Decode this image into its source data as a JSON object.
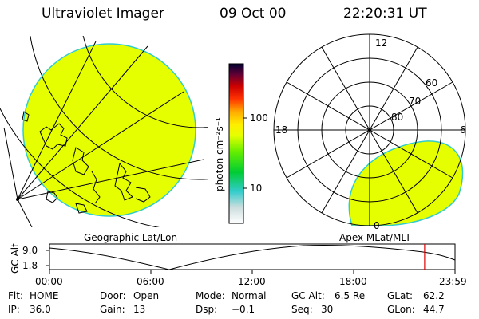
{
  "header": {
    "instrument": "Ultraviolet Imager",
    "date": "09 Oct 00",
    "time": "22:20:31 UT"
  },
  "colorbar": {
    "unit_label": "photon cm⁻²s⁻¹",
    "ticks": [
      "100",
      "10"
    ]
  },
  "polar_plot": {
    "mlt_labels": {
      "top": "12",
      "left": "18",
      "right": "6",
      "bottom": "0"
    },
    "lat_labels": [
      "60",
      "70",
      "80"
    ]
  },
  "panel_labels": {
    "left": "Geographic Lat/Lon",
    "right": "Apex MLat/MLT"
  },
  "orbit_plot": {
    "ylabel": "GC Alt",
    "yticks": [
      "9.0",
      "1.8"
    ],
    "xticks": [
      "00:00",
      "06:00",
      "12:00",
      "18:00",
      "23:59"
    ],
    "current_fraction": 0.925
  },
  "info": {
    "row1": [
      {
        "key": "Flt:",
        "value": "HOME"
      },
      {
        "key": "Door:",
        "value": "Open"
      },
      {
        "key": "Mode:",
        "value": "Normal"
      },
      {
        "key": "GC Alt:",
        "value": "6.5 Re"
      },
      {
        "key": "GLat:",
        "value": "62.2"
      }
    ],
    "row2": [
      {
        "key": "IP:",
        "value": "36.0"
      },
      {
        "key": "Gain:",
        "value": "13"
      },
      {
        "key": "Dsp:",
        "value": "−0.1"
      },
      {
        "key": "Seq:",
        "value": "30"
      },
      {
        "key": "GLon:",
        "value": "44.7"
      }
    ]
  },
  "colors": {
    "aurora": "#e6ff00",
    "aurora_edge": "#33cccc",
    "marker": "#dd0000"
  }
}
